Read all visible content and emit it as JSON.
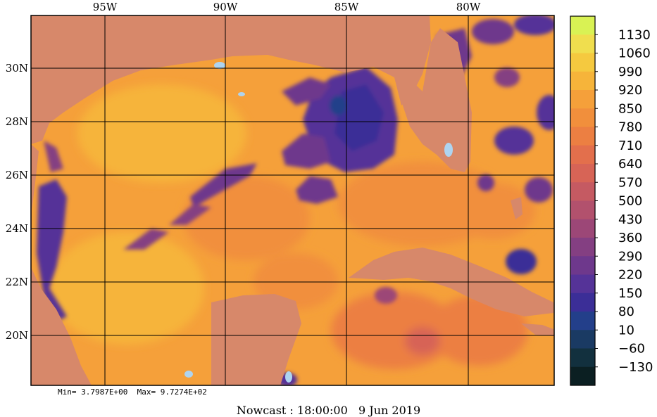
{
  "map": {
    "lon_labels": [
      "95W",
      "90W",
      "85W",
      "80W"
    ],
    "lat_labels": [
      "30N",
      "28N",
      "26N",
      "24N",
      "22N",
      "20N"
    ]
  },
  "colorbar": {
    "labels": [
      "1130",
      "1060",
      "990",
      "920",
      "850",
      "780",
      "710",
      "640",
      "570",
      "500",
      "430",
      "360",
      "290",
      "220",
      "150",
      "80",
      "10",
      "−60",
      "−130"
    ],
    "colors": [
      "#d9f254",
      "#f0de4e",
      "#f5c93f",
      "#f6b43a",
      "#f5a03a",
      "#f18f3c",
      "#ec7f42",
      "#e36f4c",
      "#d76456",
      "#c55a62",
      "#b2516d",
      "#9c4777",
      "#843f82",
      "#6e388c",
      "#553398",
      "#3b2e97",
      "#233f8a",
      "#1a3a63",
      "#12303e",
      "#0b1f22"
    ]
  },
  "stats": "Min= 3.7987E+00  Max= 9.7274E+02",
  "caption": "Nowcast : 18:00:00   9 Jun 2019"
}
